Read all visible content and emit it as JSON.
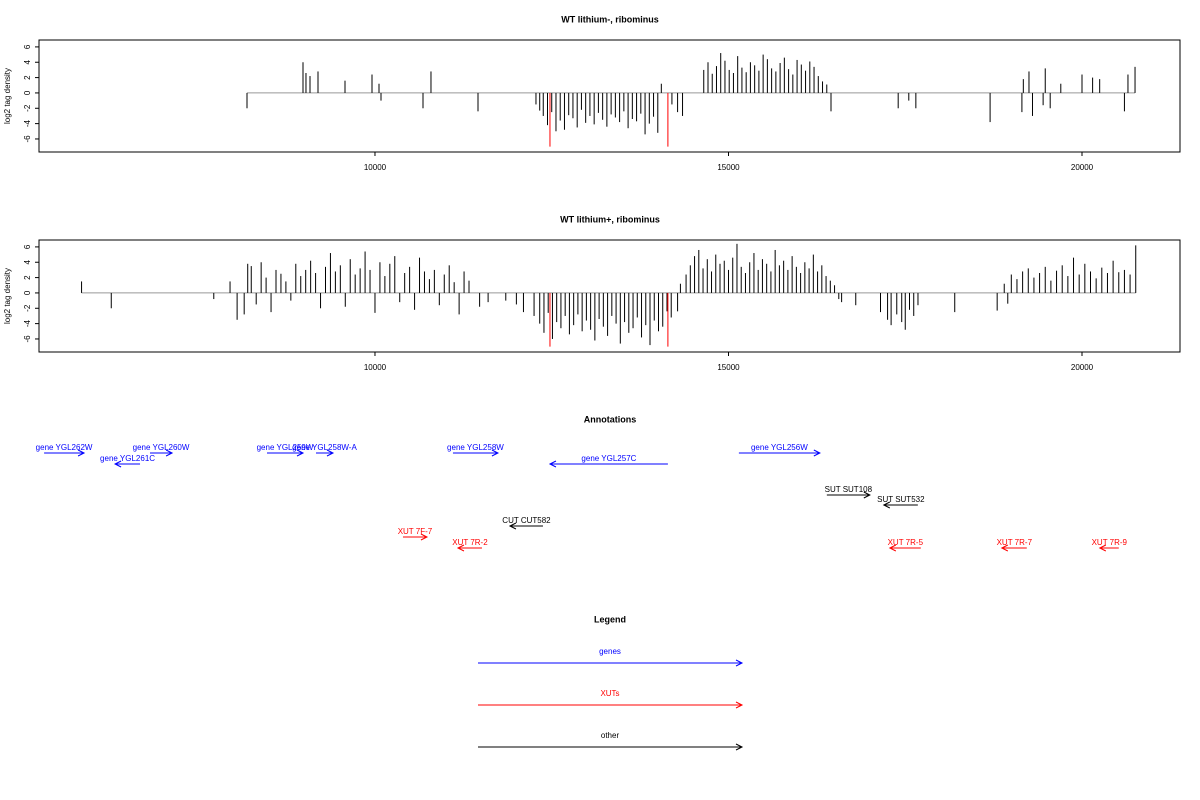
{
  "chart_data": [
    {
      "type": "spike",
      "title": "WT lithium-, ribominus",
      "ylabel": "log2 tag density",
      "xlim": [
        5248,
        21386
      ],
      "ylim": [
        -7.7,
        6.9
      ],
      "xticks": [
        10000,
        15000,
        20000
      ],
      "yticks": [
        -6,
        -4,
        -2,
        0,
        2,
        4,
        6
      ],
      "series": [
        {
          "color": "#000000",
          "x": [
            8190,
            8982,
            9024,
            9081,
            9194,
            9576,
            9958,
            10057,
            10085,
            10679,
            10792,
            11457,
            12277,
            12330,
            12380,
            12440,
            12500,
            12560,
            12620,
            12680,
            12740,
            12800,
            12860,
            12920,
            12980,
            13040,
            13100,
            13160,
            13220,
            13280,
            13340,
            13400,
            13460,
            13520,
            13580,
            13640,
            13700,
            13760,
            13820,
            13880,
            13940,
            14000,
            14050,
            14200,
            14280,
            14350,
            14650,
            14710,
            14770,
            14830,
            14890,
            14950,
            15010,
            15070,
            15130,
            15190,
            15250,
            15310,
            15370,
            15430,
            15490,
            15550,
            15610,
            15670,
            15730,
            15790,
            15850,
            15910,
            15970,
            16030,
            16090,
            16150,
            16210,
            16270,
            16330,
            16390,
            16450,
            17400,
            17550,
            17650,
            18700,
            19150,
            19170,
            19250,
            19300,
            19450,
            19480,
            19550,
            19700,
            20000,
            20150,
            20250,
            20600,
            20650,
            20750
          ],
          "values": [
            -2,
            4,
            2.6,
            2.2,
            2.8,
            1.6,
            2.4,
            1.2,
            -1,
            -2,
            2.8,
            -2.4,
            -1.5,
            -2.3,
            -3,
            -4.2,
            -2.5,
            -5,
            -3.6,
            -4.8,
            -2.9,
            -3.3,
            -4.5,
            -2.2,
            -3.9,
            -3,
            -4.1,
            -2.6,
            -3.5,
            -4.4,
            -2.8,
            -3.2,
            -3.8,
            -2.4,
            -4.6,
            -3.4,
            -3.7,
            -2.7,
            -5.4,
            -4,
            -3.1,
            -5.2,
            1.2,
            -1.5,
            -2.5,
            -3,
            3,
            4,
            2.5,
            3.5,
            5.2,
            4.2,
            3,
            2.6,
            4.8,
            3.3,
            2.7,
            4,
            3.6,
            2.9,
            5,
            4.4,
            3.2,
            2.8,
            3.9,
            4.6,
            3.1,
            2.4,
            4.3,
            3.7,
            2.9,
            4.1,
            3.4,
            2.2,
            1.5,
            1.1,
            -2.4,
            -2,
            -1,
            -2,
            -3.8,
            -2.5,
            1.8,
            2.8,
            -3,
            -1.6,
            3.2,
            -2,
            1.2,
            2.4,
            2,
            1.8,
            -2.4,
            2.4,
            3.4
          ]
        },
        {
          "color": "#ff0000",
          "x": [
            12475,
            14143
          ],
          "values": [
            -7,
            -7
          ]
        }
      ]
    },
    {
      "type": "spike",
      "title": "WT lithium+, ribominus",
      "ylabel": "log2 tag density",
      "xlim": [
        5248,
        21386
      ],
      "ylim": [
        -7.7,
        6.9
      ],
      "xticks": [
        10000,
        15000,
        20000
      ],
      "yticks": [
        -6,
        -4,
        -2,
        0,
        2,
        4,
        6
      ],
      "series": [
        {
          "color": "#000000",
          "x": [
            5850,
            6270,
            7720,
            7950,
            8050,
            8150,
            8200,
            8250,
            8320,
            8390,
            8460,
            8530,
            8600,
            8670,
            8740,
            8810,
            8880,
            8950,
            9020,
            9090,
            9160,
            9230,
            9300,
            9370,
            9440,
            9510,
            9580,
            9650,
            9720,
            9790,
            9860,
            9930,
            10000,
            10070,
            10140,
            10210,
            10280,
            10350,
            10420,
            10490,
            10560,
            10630,
            10700,
            10770,
            10840,
            10910,
            10980,
            11050,
            11120,
            11190,
            11260,
            11330,
            11480,
            11600,
            11850,
            12000,
            12100,
            12250,
            12330,
            12390,
            12450,
            12510,
            12570,
            12630,
            12690,
            12750,
            12810,
            12870,
            12930,
            12990,
            13050,
            13110,
            13170,
            13230,
            13290,
            13350,
            13410,
            13470,
            13530,
            13590,
            13650,
            13710,
            13770,
            13830,
            13890,
            13950,
            14010,
            14070,
            14130,
            14190,
            14280,
            14320,
            14400,
            14460,
            14520,
            14580,
            14640,
            14700,
            14760,
            14820,
            14880,
            14940,
            15000,
            15060,
            15120,
            15180,
            15240,
            15300,
            15360,
            15420,
            15480,
            15540,
            15600,
            15660,
            15720,
            15780,
            15840,
            15900,
            15960,
            16020,
            16080,
            16140,
            16200,
            16260,
            16320,
            16380,
            16440,
            16500,
            16560,
            16600,
            16800,
            17150,
            17250,
            17300,
            17380,
            17450,
            17500,
            17560,
            17620,
            17680,
            18200,
            18800,
            18900,
            18950,
            19000,
            19080,
            19160,
            19240,
            19320,
            19400,
            19480,
            19560,
            19640,
            19720,
            19800,
            19880,
            19960,
            20040,
            20120,
            20200,
            20280,
            20360,
            20440,
            20520,
            20600,
            20680,
            20760
          ],
          "values": [
            1.5,
            -2,
            -0.8,
            1.5,
            -3.5,
            -2.8,
            3.8,
            3.5,
            -1.5,
            4,
            2,
            -2.5,
            3,
            2.5,
            1.5,
            -1,
            3.8,
            2.2,
            3,
            4.2,
            2.6,
            -2,
            3.4,
            5.2,
            2.8,
            3.6,
            -1.8,
            4.4,
            2.4,
            3.2,
            5.4,
            3,
            -2.6,
            4,
            2.2,
            3.8,
            4.8,
            -1.2,
            2.6,
            3.4,
            -2.2,
            4.6,
            2.8,
            1.8,
            3,
            -1.6,
            2.4,
            3.6,
            1.4,
            -2.8,
            2.8,
            1.6,
            -1.8,
            -1.2,
            -1,
            -1.5,
            -2.5,
            -3,
            -4,
            -5.2,
            -2.6,
            -6,
            -3.8,
            -4.6,
            -3,
            -5.4,
            -4.2,
            -2.8,
            -5,
            -3.6,
            -4.8,
            -6.2,
            -3.4,
            -4.4,
            -5.6,
            -3,
            -4,
            -6.6,
            -3.8,
            -5.2,
            -4.6,
            -3.2,
            -5.8,
            -4.2,
            -6.8,
            -3.6,
            -5,
            -4.4,
            -2.4,
            -3.2,
            -2.4,
            1.2,
            2.4,
            3.6,
            4.8,
            5.6,
            3.2,
            4.4,
            2.8,
            5,
            3.8,
            4.2,
            3,
            4.6,
            6.4,
            3.4,
            2.6,
            4,
            5.2,
            3,
            4.4,
            3.8,
            2.8,
            5.6,
            3.6,
            4.2,
            3,
            4.8,
            3.4,
            2.6,
            4,
            3.2,
            5,
            2.8,
            3.6,
            2.2,
            1.6,
            1,
            -0.8,
            -1.2,
            -1.6,
            -2.5,
            -3.5,
            -4.2,
            -2.8,
            -3.8,
            -4.8,
            -2.2,
            -3,
            -1.6,
            -2.5,
            -2.3,
            1.2,
            -1.4,
            2.4,
            1.8,
            2.8,
            3.2,
            2,
            2.6,
            3.4,
            1.6,
            2.9,
            3.6,
            2.2,
            4.6,
            2.4,
            3.8,
            2.8,
            1.9,
            3.3,
            2.6,
            4.2,
            2.7,
            3,
            2.4,
            6.2
          ]
        },
        {
          "color": "#ff0000",
          "x": [
            12475,
            14143
          ],
          "values": [
            -7,
            -7
          ]
        }
      ]
    }
  ],
  "annotations": {
    "title": "Annotations",
    "items": [
      {
        "label": "gene YGL262W",
        "start": 5320,
        "end": 5885,
        "strand": "+",
        "color": "#0000ff"
      },
      {
        "label": "gene YGL261C",
        "start": 6324,
        "end": 6677,
        "strand": "-",
        "color": "#0000ff"
      },
      {
        "label": "gene YGL260W",
        "start": 6818,
        "end": 7130,
        "strand": "+",
        "color": "#0000ff"
      },
      {
        "label": "gene YGL259W",
        "start": 8473,
        "end": 8982,
        "strand": "+",
        "color": "#0000ff"
      },
      {
        "label": "gene YGL258W-A",
        "start": 9166,
        "end": 9406,
        "strand": "+",
        "color": "#0000ff"
      },
      {
        "label": "gene YGL258W",
        "start": 11103,
        "end": 11739,
        "strand": "+",
        "color": "#0000ff"
      },
      {
        "label": "gene YGL257C",
        "start": 12475,
        "end": 14143,
        "strand": "-",
        "color": "#0000ff"
      },
      {
        "label": "gene YGL256W",
        "start": 15147,
        "end": 16292,
        "strand": "+",
        "color": "#0000ff"
      },
      {
        "label": "SUT SUT108",
        "start": 16391,
        "end": 16999,
        "strand": "+",
        "color": "#000000"
      },
      {
        "label": "SUT SUT532",
        "start": 17197,
        "end": 17678,
        "strand": "-",
        "color": "#000000"
      },
      {
        "label": "CUT CUT582",
        "start": 11909,
        "end": 12376,
        "strand": "-",
        "color": "#000000"
      },
      {
        "label": "XUT 7F-7",
        "start": 10396,
        "end": 10735,
        "strand": "+",
        "color": "#ff0000"
      },
      {
        "label": "XUT 7R-2",
        "start": 11174,
        "end": 11513,
        "strand": "-",
        "color": "#ff0000"
      },
      {
        "label": "XUT 7R-5",
        "start": 17282,
        "end": 17720,
        "strand": "-",
        "color": "#ff0000"
      },
      {
        "label": "XUT 7R-7",
        "start": 18866,
        "end": 19219,
        "strand": "-",
        "color": "#ff0000"
      },
      {
        "label": "XUT 7R-9",
        "start": 20252,
        "end": 20520,
        "strand": "-",
        "color": "#ff0000"
      }
    ]
  },
  "legend": {
    "title": "Legend",
    "items": [
      {
        "label": "genes",
        "color": "#0000ff"
      },
      {
        "label": "XUTs",
        "color": "#ff0000"
      },
      {
        "label": "other",
        "color": "#000000"
      }
    ]
  }
}
